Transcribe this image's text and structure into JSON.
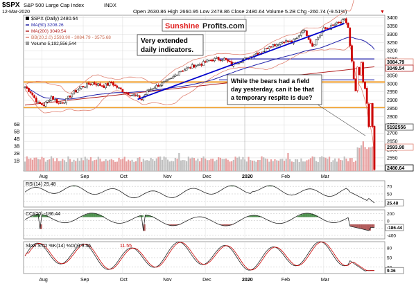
{
  "header": {
    "symbol": "$SPX",
    "name": "S&P 500 Large Cap Index",
    "exchange": "INDX",
    "date": "12-Mar-2020",
    "ohlc": "Open 2630.86  High 2660.95  Low 2478.86  Close 2480.64  Volume 5.2B  Chg -260.74 (-9.51%)",
    "chg_marker": "▼"
  },
  "legend": {
    "price": "$SPX (Daily) 2480.64",
    "ma50": "MA(50) 3208.26",
    "ma200": "MA(200) 3049.54",
    "bb": "BB(20,2.0) 2593.90 - 3084.79 - 3575.68",
    "volume": "Volume 5,192,556,544"
  },
  "watermark": {
    "part1": "Sunshine",
    "part2": "Profits.com"
  },
  "annotations": {
    "a1": "Very extended",
    "a2": "daily indicators.",
    "b1": "While the bears had a field",
    "b2": "day yesterday, can it be that",
    "b3": "a temporary respite is due?"
  },
  "price_labels": {
    "bb_upper": "3084.79",
    "ma200": "3049.54",
    "volume": "5192556",
    "bb_lower": "2593.90",
    "close": "2480.64"
  },
  "indicators": {
    "rsi": {
      "label": "RSI(14) 25.48",
      "value": "25.48"
    },
    "cci": {
      "label": "CCI(20) -186.44",
      "value": "-186.44"
    },
    "sto": {
      "label": "Slow STO %K(14) %D(3) 9.36,",
      "label2": "11.55",
      "value": "9.36"
    }
  },
  "colors": {
    "up": "#1a1a1a",
    "down": "#cc0000",
    "ma50": "#1f1fa8",
    "ma200": "#b22222",
    "bb": "#e08070",
    "orange": "#f0a030",
    "trend": "#0000cc",
    "grid": "#d8d8d8",
    "fill_green": "#2a7a2a",
    "fill_red": "#a33a3a"
  },
  "chart_data": {
    "type": "candlestick",
    "months": [
      "Aug",
      "Sep",
      "Oct",
      "Nov",
      "Dec",
      "2020",
      "Feb",
      "Mar"
    ],
    "price_axis": {
      "ticks": [
        3400,
        3350,
        3300,
        3250,
        3200,
        3150,
        3100,
        3050,
        3000,
        2950,
        2900,
        2850,
        2800,
        2750,
        2700,
        2650,
        2600,
        2550,
        2500
      ],
      "range": [
        2470,
        3415
      ]
    },
    "volume_axis": {
      "ticks": [
        "6B",
        "5B",
        "4B",
        "3B",
        "2B",
        "1B"
      ]
    },
    "horizontal_levels": [
      3150,
      3020,
      3010,
      2855
    ],
    "trendline": {
      "from": 2905,
      "to": 3365
    },
    "rsi_axis": [
      70,
      50,
      30
    ],
    "cci_axis": [
      200,
      0,
      -200,
      -400
    ],
    "sto_axis": [
      80,
      50,
      20
    ],
    "close_path": [
      [
        0,
        2980
      ],
      [
        3,
        2950
      ],
      [
        7,
        2880
      ],
      [
        10,
        2870
      ],
      [
        14,
        2920
      ],
      [
        18,
        2880
      ],
      [
        22,
        2900
      ],
      [
        25,
        2940
      ],
      [
        30,
        2980
      ],
      [
        36,
        3005
      ],
      [
        42,
        2985
      ],
      [
        46,
        3005
      ],
      [
        50,
        2970
      ],
      [
        55,
        2940
      ],
      [
        59,
        2925
      ],
      [
        62,
        2905
      ],
      [
        66,
        2965
      ],
      [
        70,
        2985
      ],
      [
        74,
        3005
      ],
      [
        78,
        3030
      ],
      [
        82,
        3075
      ],
      [
        86,
        3090
      ],
      [
        90,
        3110
      ],
      [
        94,
        3120
      ],
      [
        98,
        3140
      ],
      [
        102,
        3150
      ],
      [
        106,
        3150
      ],
      [
        110,
        3115
      ],
      [
        114,
        3140
      ],
      [
        118,
        3150
      ],
      [
        122,
        3180
      ],
      [
        126,
        3190
      ],
      [
        130,
        3230
      ],
      [
        134,
        3240
      ],
      [
        138,
        3260
      ],
      [
        142,
        3250
      ],
      [
        145,
        3280
      ],
      [
        148,
        3330
      ],
      [
        150,
        3300
      ],
      [
        153,
        3230
      ],
      [
        156,
        3280
      ],
      [
        159,
        3330
      ],
      [
        162,
        3340
      ],
      [
        165,
        3360
      ],
      [
        168,
        3370
      ],
      [
        170,
        3386
      ],
      [
        171,
        3370
      ],
      [
        172,
        3340
      ],
      [
        173,
        3225
      ],
      [
        174,
        3130
      ],
      [
        175,
        3020
      ],
      [
        176,
        2955
      ],
      [
        177,
        3090
      ],
      [
        178,
        3050
      ],
      [
        179,
        3120
      ],
      [
        180,
        3010
      ],
      [
        181,
        2970
      ],
      [
        182,
        2880
      ],
      [
        183,
        2740
      ],
      [
        184,
        2880
      ],
      [
        185,
        2740
      ],
      [
        186,
        2480
      ]
    ]
  }
}
